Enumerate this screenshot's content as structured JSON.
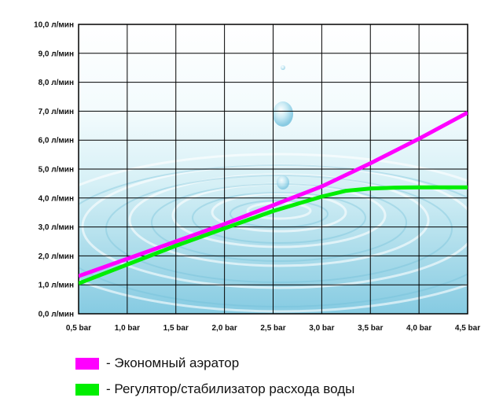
{
  "chart_data": {
    "type": "line",
    "title": "",
    "xlabel": "",
    "ylabel": "",
    "x_ticks": [
      "0,5 bar",
      "1,0 bar",
      "1,5 bar",
      "2,0 bar",
      "2,5 bar",
      "3,0 bar",
      "3,5 bar",
      "4,0 bar",
      "4,5 bar"
    ],
    "y_ticks": [
      "0,0 л/мин",
      "1,0 л/мин",
      "2,0 л/мин",
      "3,0 л/мин",
      "4,0 л/мин",
      "5,0 л/мин",
      "6,0 л/мин",
      "7,0 л/мин",
      "8,0 л/мин",
      "9,0 л/мин",
      "10,0 л/мин"
    ],
    "xlim": [
      0.5,
      4.5
    ],
    "ylim": [
      0,
      10
    ],
    "grid": true,
    "legend_position": "bottom",
    "series": [
      {
        "name": "- Экономный аэратор",
        "color": "#ff00ff",
        "x": [
          0.5,
          1.0,
          1.5,
          2.0,
          2.5,
          3.0,
          3.5,
          4.0,
          4.5
        ],
        "y": [
          1.3,
          1.9,
          2.5,
          3.1,
          3.75,
          4.4,
          5.2,
          6.05,
          6.95
        ]
      },
      {
        "name": "- Регулятор/стабилизатор расхода воды",
        "color": "#00ee00",
        "x": [
          0.5,
          1.0,
          1.5,
          2.0,
          2.5,
          3.0,
          3.25,
          3.5,
          3.75,
          4.0,
          4.25,
          4.5
        ],
        "y": [
          1.05,
          1.7,
          2.35,
          2.95,
          3.55,
          4.05,
          4.25,
          4.33,
          4.36,
          4.37,
          4.37,
          4.37
        ]
      }
    ]
  },
  "legend": {
    "items": [
      {
        "label": "- Экономный аэратор",
        "color": "#ff00ff"
      },
      {
        "label": "- Регулятор/стабилизатор расхода воды",
        "color": "#00ee00"
      }
    ]
  }
}
